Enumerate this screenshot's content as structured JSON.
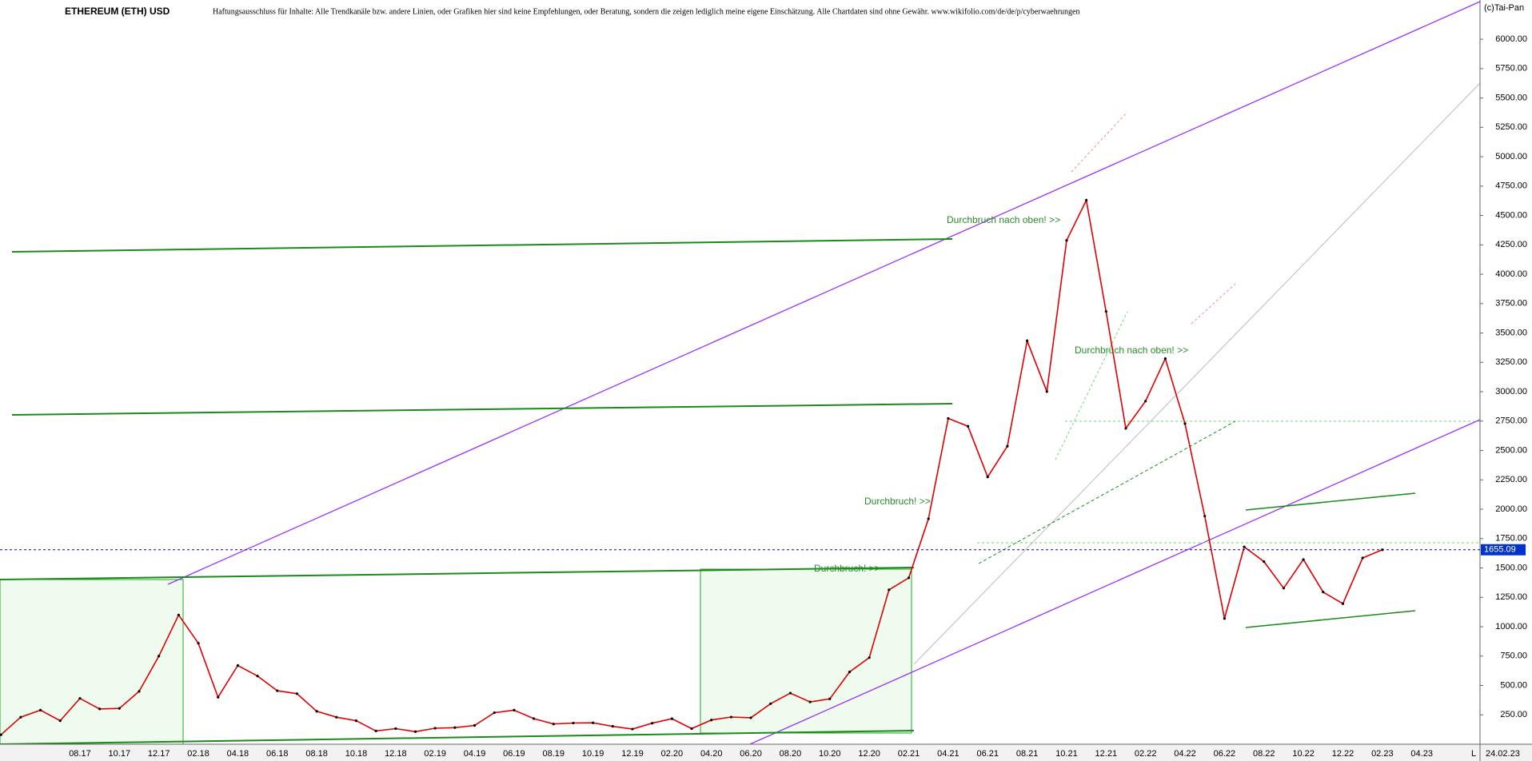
{
  "chart_data": {
    "type": "line",
    "title": "ETHEREUM (ETH) USD",
    "subtitle": "Haftungsausschluss für Inhalte: Alle Trendkanäle bzw. andere Linien, oder Grafiken hier sind keine Empfehlungen, oder Beratung, sondern die zeigen lediglich meine eigene Einschätzung. Alle Chartdaten sind ohne Gewähr.  www.wikifolio.com/de/de/p/cyberwaehrungen",
    "source": "(c)Tai-Pan",
    "annotations": [
      "Durchbruch nach oben! >>",
      "Durchbruch nach oben! >>",
      "Durchbruch! >>",
      "Durchbruch! >>"
    ],
    "date_label": "24.02.23",
    "corner_label": "L",
    "last_price": 1655.09,
    "color": "#e00000",
    "categories": [
      null,
      null,
      null,
      null,
      "08.17",
      null,
      "10.17",
      null,
      "12.17",
      null,
      "02.18",
      null,
      "04.18",
      null,
      "06.18",
      null,
      "08.18",
      null,
      "10.18",
      null,
      "12.18",
      null,
      "02.19",
      null,
      "04.19",
      null,
      "06.19",
      null,
      "08.19",
      null,
      "10.19",
      null,
      "12.19",
      null,
      "02.20",
      null,
      "04.20",
      null,
      "06.20",
      null,
      "08.20",
      null,
      "10.20",
      null,
      "12.20",
      null,
      "02.21",
      null,
      "04.21",
      null,
      "06.21",
      null,
      "08.21",
      null,
      "10.21",
      null,
      "12.21",
      null,
      "02.22",
      null,
      "04.22",
      null,
      "06.22",
      null,
      "08.22",
      null,
      "10.22",
      null,
      "12.22",
      null,
      "02.23",
      null,
      "04.23",
      null,
      null
    ],
    "values": [
      80,
      230,
      290,
      200,
      390,
      300,
      305,
      450,
      750,
      1100,
      860,
      400,
      670,
      580,
      455,
      430,
      280,
      230,
      200,
      113,
      133,
      107,
      136,
      141,
      160,
      268,
      290,
      218,
      172,
      180,
      182,
      152,
      129,
      179,
      217,
      133,
      206,
      231,
      225,
      345,
      435,
      360,
      386,
      615,
      737,
      1314,
      1416,
      1919,
      2773,
      2706,
      2275,
      2536,
      3433,
      3001,
      4288,
      4630,
      3683,
      2688,
      2920,
      3282,
      2728,
      1942,
      1070,
      1680,
      1554,
      1328,
      1572,
      1295,
      1196,
      1585,
      1655,
      null,
      null,
      null,
      null
    ],
    "ylim": [
      0,
      6300
    ],
    "yticks": [
      {
        "value": 250,
        "label": "250.00"
      },
      {
        "value": 500,
        "label": "500.00"
      },
      {
        "value": 750,
        "label": "750.00"
      },
      {
        "value": 1000,
        "label": "1000.00"
      },
      {
        "value": 1250,
        "label": "1250.00"
      },
      {
        "value": 1500,
        "label": "1500.00"
      },
      {
        "value": 1750,
        "label": "1750.00"
      },
      {
        "value": 2000,
        "label": "2000.00"
      },
      {
        "value": 2250,
        "label": "2250.00"
      },
      {
        "value": 2500,
        "label": "2500.00"
      },
      {
        "value": 2750,
        "label": "2750.00"
      },
      {
        "value": 3000,
        "label": "3000.00"
      },
      {
        "value": 3250,
        "label": "3250.00"
      },
      {
        "value": 3500,
        "label": "3500.00"
      },
      {
        "value": 3750,
        "label": "3750.00"
      },
      {
        "value": 4000,
        "label": "4000.00"
      },
      {
        "value": 4250,
        "label": "4250.00"
      },
      {
        "value": 4500,
        "label": "4500.00"
      },
      {
        "value": 4750,
        "label": "4750.00"
      },
      {
        "value": 5000,
        "label": "5000.00"
      },
      {
        "value": 5250,
        "label": "5250.00"
      },
      {
        "value": 5500,
        "label": "5500.00"
      },
      {
        "value": 5750,
        "label": "5750.00"
      },
      {
        "value": 6000,
        "label": "6000.00"
      }
    ]
  }
}
